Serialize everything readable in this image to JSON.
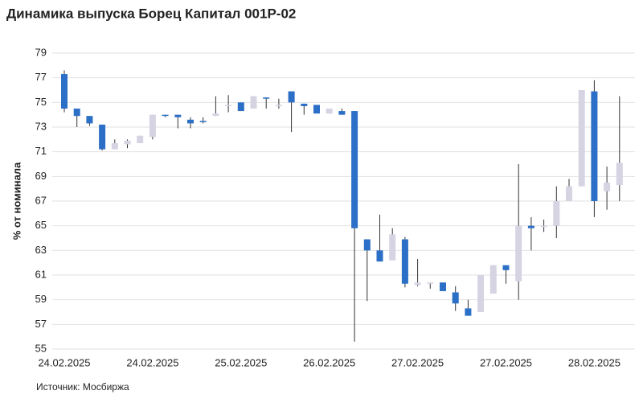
{
  "chart_data": {
    "type": "candlestick",
    "title": "Динамика выпуска Борец Капитал 001Р-02",
    "y_label": "% от номинала",
    "source": "Источник: Мосбиржа",
    "up_color": "#d6d3e3",
    "down_color": "#2b6fc6",
    "categories": [
      "24.02.2025",
      null,
      null,
      null,
      null,
      null,
      null,
      "24.02.2025",
      null,
      null,
      null,
      null,
      null,
      null,
      "25.02.2025",
      null,
      null,
      null,
      null,
      null,
      null,
      "26.02.2025",
      null,
      null,
      null,
      null,
      null,
      null,
      "27.02.2025",
      null,
      null,
      null,
      null,
      null,
      null,
      "27.02.2025",
      null,
      null,
      null,
      null,
      null,
      null,
      "28.02.2025",
      null,
      null
    ],
    "open": [
      77.3,
      74.5,
      73.9,
      73.2,
      71.2,
      71.6,
      71.7,
      72.2,
      74.0,
      74.0,
      73.6,
      73.5,
      73.9,
      74.7,
      75.0,
      74.5,
      75.4,
      74.7,
      75.9,
      74.9,
      74.8,
      74.1,
      74.3,
      74.3,
      63.9,
      63.0,
      62.2,
      63.9,
      60.2,
      60.3,
      60.4,
      59.6,
      58.3,
      58.0,
      59.5,
      61.8,
      60.5,
      65.0,
      64.9,
      65.0,
      67.0,
      68.2,
      75.9,
      67.8,
      68.3
    ],
    "high": [
      77.6,
      74.5,
      73.9,
      73.2,
      72.0,
      72.0,
      72.3,
      74.0,
      74.0,
      74.0,
      73.8,
      73.8,
      75.5,
      75.6,
      75.0,
      75.5,
      75.4,
      75.3,
      75.9,
      74.9,
      74.8,
      74.5,
      74.5,
      74.3,
      63.9,
      65.9,
      64.8,
      64.1,
      62.3,
      60.4,
      60.4,
      60.1,
      59.0,
      61.0,
      61.8,
      61.8,
      70.0,
      65.7,
      65.5,
      68.2,
      68.8,
      76.0,
      76.8,
      69.8,
      75.5
    ],
    "low": [
      74.2,
      73.0,
      73.1,
      71.1,
      71.2,
      71.3,
      71.7,
      72.0,
      73.8,
      72.9,
      72.9,
      73.3,
      73.9,
      74.2,
      74.3,
      74.5,
      74.5,
      74.5,
      72.6,
      74.0,
      74.1,
      74.1,
      74.0,
      55.6,
      58.9,
      62.1,
      62.2,
      60.0,
      60.1,
      59.9,
      59.7,
      58.1,
      57.7,
      58.0,
      59.5,
      60.3,
      59.0,
      63.0,
      64.5,
      64.0,
      67.0,
      68.2,
      65.7,
      66.3,
      67.0
    ],
    "close": [
      74.5,
      73.9,
      73.3,
      71.2,
      71.7,
      71.9,
      72.3,
      74.0,
      73.9,
      73.8,
      73.3,
      73.4,
      74.1,
      74.8,
      74.3,
      75.5,
      75.3,
      74.8,
      75.0,
      74.7,
      74.1,
      74.5,
      74.0,
      64.8,
      63.0,
      62.1,
      64.3,
      60.3,
      60.4,
      60.4,
      59.7,
      58.7,
      57.7,
      61.0,
      61.8,
      61.4,
      65.0,
      64.8,
      65.0,
      67.0,
      68.2,
      76.0,
      67.0,
      68.5,
      70.1
    ],
    "ylim": [
      55,
      79
    ],
    "yticks": [
      55,
      57,
      59,
      61,
      63,
      65,
      67,
      69,
      71,
      73,
      75,
      77,
      79
    ],
    "grid": true
  }
}
